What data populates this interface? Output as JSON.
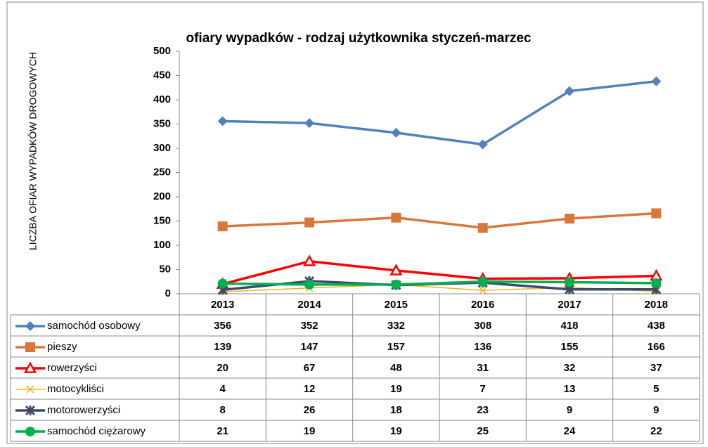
{
  "chart_data": {
    "type": "line",
    "title": "ofiary wypadków  - rodzaj użytkownika styczeń-marzec",
    "y_label": "LICZBA OFIAR WYPADKÓW DROGOWYCH",
    "categories": [
      "2013",
      "2014",
      "2015",
      "2016",
      "2017",
      "2018"
    ],
    "ylim": [
      0,
      500
    ],
    "yticks": [
      0,
      50,
      100,
      150,
      200,
      250,
      300,
      350,
      400,
      450,
      500
    ],
    "grid": false,
    "series": [
      {
        "name": "samochód osobowy",
        "color": "#4f81bd",
        "marker": "diamond",
        "line_width": 3.5,
        "values": [
          356,
          352,
          332,
          308,
          418,
          438
        ]
      },
      {
        "name": "pieszy",
        "color": "#d9773a",
        "marker": "square",
        "line_width": 3.5,
        "values": [
          139,
          147,
          157,
          136,
          155,
          166
        ]
      },
      {
        "name": "rowerzyści",
        "color": "#ff0000",
        "marker": "triangle",
        "line_width": 3.5,
        "values": [
          20,
          67,
          48,
          31,
          32,
          37
        ]
      },
      {
        "name": "motocykliści",
        "color": "#f2b01e",
        "marker": "x",
        "line_width": 1.5,
        "values": [
          4,
          12,
          19,
          7,
          13,
          5
        ]
      },
      {
        "name": "motorowerzyści",
        "color": "#3d4a68",
        "marker": "star",
        "line_width": 3.5,
        "values": [
          8,
          26,
          18,
          23,
          9,
          9
        ]
      },
      {
        "name": "samochód ciężarowy",
        "color": "#00b050",
        "marker": "circle",
        "line_width": 3.5,
        "values": [
          21,
          19,
          19,
          25,
          24,
          22
        ]
      }
    ]
  }
}
